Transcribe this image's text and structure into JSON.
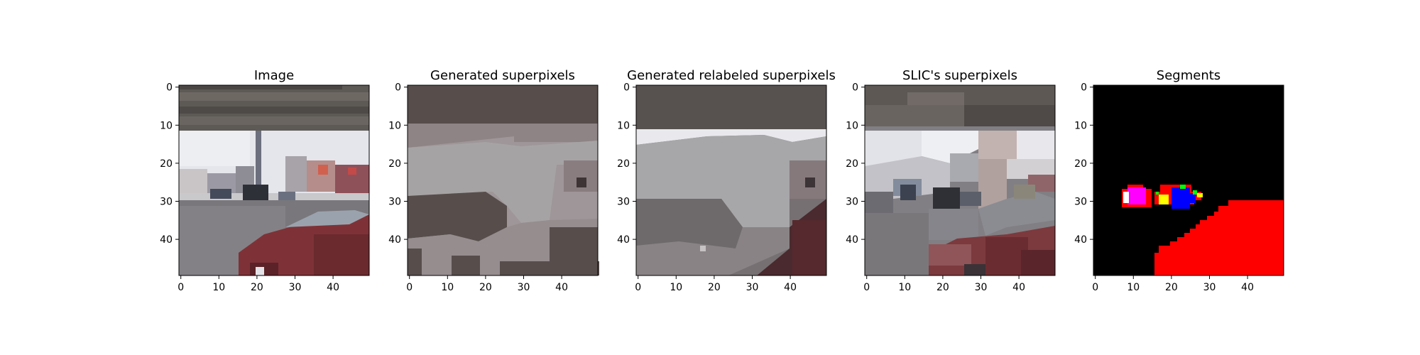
{
  "figure": {
    "axis_ticks": [
      "0",
      "10",
      "20",
      "30",
      "40"
    ],
    "panels": [
      {
        "id": "image",
        "title": "Image"
      },
      {
        "id": "generated",
        "title": "Generated superpixels"
      },
      {
        "id": "relabeled",
        "title": "Generated relabeled superpixels"
      },
      {
        "id": "slic",
        "title": "SLIC's superpixels"
      },
      {
        "id": "segments",
        "title": "Segments"
      }
    ]
  },
  "colors": {
    "sky": "#e6e8ee",
    "roof": "#5a5552",
    "road": "#767478",
    "car": "#7a2f35",
    "segments_bg": "#000000",
    "segments_red": "#ff0000",
    "segments_blue": "#0000ff",
    "segments_magenta": "#ff00ff",
    "segments_yellow": "#ffff00",
    "segments_green": "#00ff00"
  }
}
